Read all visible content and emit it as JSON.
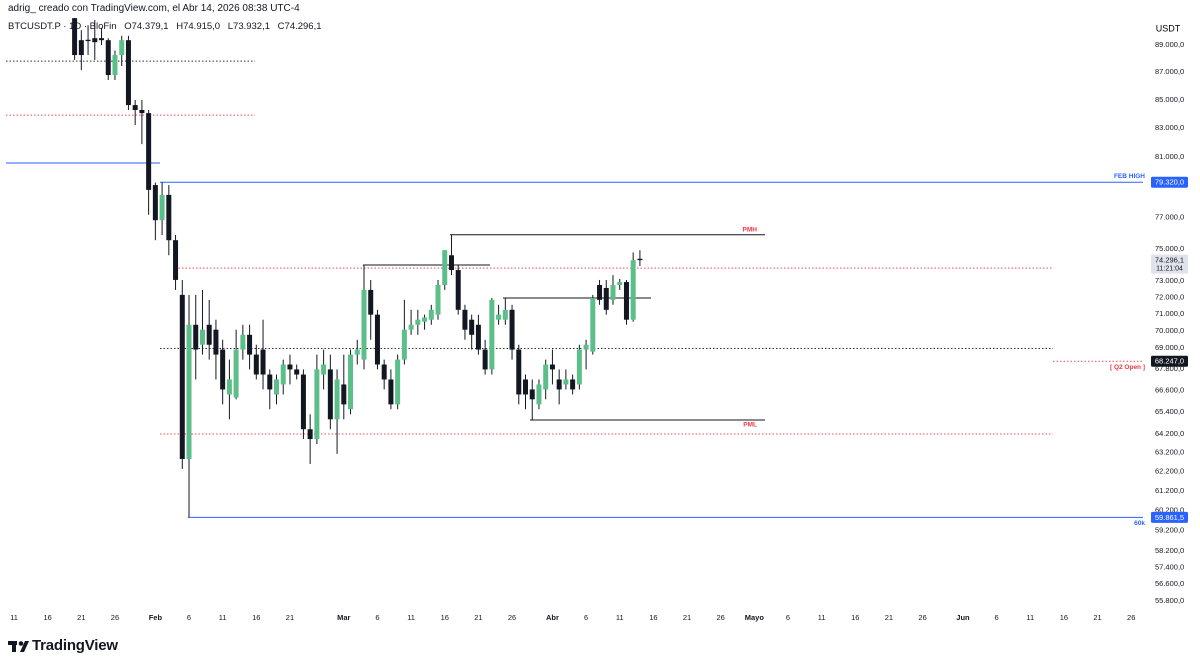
{
  "attribution": "adrig_ creado con TradingView.com, el Abr 14, 2026 08:38 UTC-4",
  "brand": "TradingView",
  "chart_data": {
    "type": "candlestick",
    "symbol": "BTCUSDT.P · 1D · BloFin",
    "ohlc_prefixes": [
      "O",
      "H",
      "L",
      "C"
    ],
    "ohlc_labels": [
      "74.379,1",
      "74.915,0",
      "73.932,1",
      "74.296,1"
    ],
    "currency": "USDT",
    "last_price": {
      "label": "74.296,1",
      "countdown": "11:21:04"
    },
    "up_color": "#5cbf8a",
    "down_color": "#131722",
    "wick_color": "#131722",
    "log_scale": true,
    "grid": false,
    "ylim": [
      55380,
      91050
    ],
    "yticks": [
      {
        "value": 89000,
        "label": "89.000,0"
      },
      {
        "value": 87000,
        "label": "87.000,0"
      },
      {
        "value": 85000,
        "label": "85.000,0"
      },
      {
        "value": 83000,
        "label": "83.000,0"
      },
      {
        "value": 81000,
        "label": "81.000,0"
      },
      {
        "value": 77000,
        "label": "77.000,0"
      },
      {
        "value": 75000,
        "label": "75.000,0"
      },
      {
        "value": 73000,
        "label": "73.000,0"
      },
      {
        "value": 72000,
        "label": "72.000,0"
      },
      {
        "value": 71000,
        "label": "71.000,0"
      },
      {
        "value": 70000,
        "label": "70.000,0"
      },
      {
        "value": 69000,
        "label": "69.000,0"
      },
      {
        "value": 67800,
        "label": "67.800,0"
      },
      {
        "value": 66600,
        "label": "66.600,0"
      },
      {
        "value": 65400,
        "label": "65.400,0"
      },
      {
        "value": 64200,
        "label": "64.200,0"
      },
      {
        "value": 63200,
        "label": "63.200,0"
      },
      {
        "value": 62200,
        "label": "62.200,0"
      },
      {
        "value": 61200,
        "label": "61.200,0"
      },
      {
        "value": 60200,
        "label": "60.200,0"
      },
      {
        "value": 59200,
        "label": "59.200,0"
      },
      {
        "value": 58200,
        "label": "58.200,0"
      },
      {
        "value": 57400,
        "label": "57.400,0"
      },
      {
        "value": 56600,
        "label": "56.600,0"
      },
      {
        "value": 55800,
        "label": "55.800,0"
      }
    ],
    "categories": [
      null,
      "11",
      null,
      null,
      null,
      null,
      "16",
      null,
      null,
      null,
      null,
      "21",
      null,
      null,
      null,
      null,
      "26",
      null,
      null,
      null,
      null,
      null,
      "Feb",
      null,
      null,
      null,
      null,
      "6",
      null,
      null,
      null,
      null,
      "11",
      null,
      null,
      null,
      null,
      "16",
      null,
      null,
      null,
      null,
      "21",
      null,
      null,
      null,
      null,
      null,
      null,
      null,
      "Mar",
      null,
      null,
      null,
      null,
      "6",
      null,
      null,
      null,
      null,
      "11",
      null,
      null,
      null,
      null,
      "16",
      null,
      null,
      null,
      null,
      "21",
      null,
      null,
      null,
      null,
      "26",
      null,
      null,
      null,
      null,
      null,
      "Abr",
      null,
      null,
      null,
      null,
      "6",
      null,
      null,
      null,
      null,
      "11",
      null,
      null,
      null,
      null,
      "16",
      null,
      null,
      null,
      null,
      "21",
      null,
      null,
      null,
      null,
      "26",
      null,
      null,
      null,
      null,
      "Mayo",
      null,
      null,
      null,
      null,
      "6",
      null,
      null,
      null,
      null,
      "11",
      null,
      null,
      null,
      null,
      "16",
      null,
      null,
      null,
      null,
      "21",
      null,
      null,
      null,
      null,
      "26",
      null,
      null,
      null,
      null,
      null,
      "Jun",
      null,
      null,
      null,
      null,
      "6",
      null,
      null,
      null,
      null,
      "11",
      null,
      null,
      null,
      null,
      "16",
      null,
      null,
      null,
      null,
      "21",
      null,
      null,
      null,
      null,
      "26",
      null,
      null,
      null,
      null
    ],
    "open": [
      null,
      null,
      null,
      null,
      null,
      null,
      null,
      null,
      null,
      null,
      91040,
      89370,
      89400,
      89520,
      89520,
      89370,
      86790,
      88260,
      89370,
      84630,
      84280,
      84060,
      79130,
      76830,
      78480,
      75550,
      72160,
      62870,
      70370,
      69200,
      70370,
      70080,
      68920,
      66370,
      66200,
      68920,
      69780,
      68630,
      68920,
      67490,
      66370,
      66930,
      68060,
      67780,
      67490,
      64460,
      63930,
      67490,
      67780,
      65000,
      66930,
      65550,
      68630,
      68340,
      72460,
      70970,
      68060,
      67210,
      65820,
      68340,
      70080,
      70370,
      70550,
      70670,
      70970,
      72760,
      74600,
      73680,
      71260,
      70670,
      70370,
      68920,
      67780,
      70670,
      70670,
      71260,
      68920,
      67210,
      66650,
      65820,
      66650,
      68060,
      67210,
      66930,
      67210,
      66930,
      68920,
      68800,
      72760,
      72580,
      71860,
      72760,
      72940,
      70670,
      74379.1,
      null,
      null,
      null,
      null,
      null,
      null,
      null,
      null,
      null,
      null,
      null,
      null,
      null,
      null,
      null,
      null,
      null,
      null,
      null,
      null,
      null,
      null,
      null,
      null,
      null,
      null,
      null,
      null,
      null,
      null,
      null,
      null,
      null,
      null,
      null,
      null,
      null,
      null,
      null,
      null,
      null,
      null,
      null,
      null,
      null,
      null,
      null,
      null,
      null,
      null,
      null,
      null,
      null,
      null,
      null,
      null,
      null,
      null,
      null,
      null,
      null,
      null,
      null,
      null,
      null,
      null,
      null,
      null,
      null,
      null,
      null,
      null,
      null,
      null,
      null,
      null,
      null
    ],
    "high": [
      null,
      null,
      null,
      null,
      null,
      null,
      null,
      null,
      null,
      null,
      91300,
      90130,
      90500,
      90900,
      90300,
      89520,
      88600,
      89700,
      89700,
      84990,
      84990,
      84280,
      79300,
      79320,
      79130,
      75880,
      73070,
      72160,
      72160,
      72460,
      71860,
      70670,
      69490,
      68340,
      70080,
      70370,
      70370,
      69200,
      70670,
      67780,
      67490,
      68340,
      68630,
      68060,
      67780,
      65270,
      68630,
      68920,
      68630,
      67780,
      68630,
      68920,
      69490,
      73990,
      73070,
      71260,
      68340,
      67780,
      68630,
      71860,
      71260,
      71260,
      70970,
      71560,
      73070,
      74920,
      75900,
      73990,
      71560,
      70970,
      70970,
      69490,
      71970,
      71560,
      71970,
      71560,
      69200,
      67490,
      67210,
      67210,
      68340,
      68920,
      67780,
      67780,
      67490,
      69200,
      69490,
      72160,
      73070,
      73070,
      73370,
      73130,
      73070,
      74780,
      74915,
      null,
      null,
      null,
      null,
      null,
      null,
      null,
      null,
      null,
      null,
      null,
      null,
      null,
      null,
      null,
      null,
      null,
      null,
      null,
      null,
      null,
      null,
      null,
      null,
      null,
      null,
      null,
      null,
      null,
      null,
      null,
      null,
      null,
      null,
      null,
      null,
      null,
      null,
      null,
      null,
      null,
      null,
      null,
      null,
      null,
      null,
      null,
      null,
      null,
      null,
      null,
      null,
      null,
      null,
      null,
      null,
      null,
      null,
      null,
      null,
      null,
      null,
      null,
      null,
      null,
      null,
      null,
      null,
      null,
      null,
      null,
      null,
      null,
      null,
      null,
      null,
      null
    ],
    "low": [
      null,
      null,
      null,
      null,
      null,
      null,
      null,
      null,
      null,
      null,
      87900,
      87150,
      88260,
      87900,
      89000,
      86430,
      86430,
      87450,
      84280,
      83220,
      81900,
      77180,
      75550,
      75880,
      74600,
      72460,
      62350,
      59861.5,
      67210,
      68630,
      68340,
      67210,
      65820,
      65000,
      66100,
      68340,
      67780,
      67210,
      66650,
      65550,
      65820,
      66370,
      66930,
      67210,
      63930,
      62610,
      63660,
      66650,
      64460,
      63140,
      65000,
      65270,
      68060,
      67780,
      69490,
      67780,
      66650,
      65550,
      65550,
      68060,
      69780,
      69780,
      70080,
      70370,
      70670,
      72460,
      73370,
      70970,
      69490,
      68920,
      68630,
      67490,
      67490,
      70370,
      70370,
      68340,
      65820,
      65550,
      64960,
      65550,
      66100,
      66930,
      65820,
      66650,
      66370,
      66650,
      67780,
      68630,
      71560,
      70970,
      71560,
      72460,
      70370,
      70550,
      73932.1,
      null,
      null,
      null,
      null,
      null,
      null,
      null,
      null,
      null,
      null,
      null,
      null,
      null,
      null,
      null,
      null,
      null,
      null,
      null,
      null,
      null,
      null,
      null,
      null,
      null,
      null,
      null,
      null,
      null,
      null,
      null,
      null,
      null,
      null,
      null,
      null,
      null,
      null,
      null,
      null,
      null,
      null,
      null,
      null,
      null,
      null,
      null,
      null,
      null,
      null,
      null,
      null,
      null,
      null,
      null,
      null,
      null,
      null,
      null,
      null,
      null,
      null,
      null,
      null,
      null,
      null,
      null,
      null,
      null,
      null,
      null,
      null,
      null,
      null,
      null,
      null,
      null
    ],
    "close": [
      null,
      null,
      null,
      null,
      null,
      null,
      null,
      null,
      null,
      null,
      88260,
      88260,
      89300,
      89220,
      89370,
      86790,
      88260,
      89370,
      84630,
      84280,
      84060,
      78810,
      76830,
      78480,
      75550,
      73070,
      62870,
      70370,
      68920,
      70080,
      69200,
      68630,
      66650,
      67210,
      68920,
      69780,
      68630,
      67490,
      67490,
      66650,
      67210,
      68060,
      67780,
      67490,
      64460,
      63930,
      67780,
      68060,
      65000,
      67210,
      65820,
      68630,
      68920,
      72460,
      70970,
      68060,
      67210,
      65820,
      68340,
      70080,
      70370,
      70670,
      70800,
      71260,
      72760,
      74920,
      73680,
      71260,
      70080,
      69780,
      68920,
      67780,
      71860,
      70970,
      71260,
      68920,
      66370,
      66370,
      66100,
      66930,
      68060,
      67780,
      66650,
      67210,
      66650,
      68920,
      69200,
      71970,
      71860,
      71260,
      72760,
      72940,
      70670,
      74290,
      74296.1,
      null,
      null,
      null,
      null,
      null,
      null,
      null,
      null,
      null,
      null,
      null,
      null,
      null,
      null,
      null,
      null,
      null,
      null,
      null,
      null,
      null,
      null,
      null,
      null,
      null,
      null,
      null,
      null,
      null,
      null,
      null,
      null,
      null,
      null,
      null,
      null,
      null,
      null,
      null,
      null,
      null,
      null,
      null,
      null,
      null,
      null,
      null,
      null,
      null,
      null,
      null,
      null,
      null,
      null,
      null,
      null,
      null,
      null,
      null,
      null,
      null,
      null,
      null,
      null,
      null,
      null,
      null,
      null,
      null,
      null,
      null,
      null,
      null,
      null,
      null,
      null,
      null
    ],
    "levels": [
      {
        "value": 87810,
        "color": "#131722",
        "style": "dotted"
      },
      {
        "value": 83920,
        "color": "#f23645",
        "style": "dotted"
      },
      {
        "value": 80610,
        "color": "#2962ff",
        "style": "solid"
      },
      {
        "value": 79320,
        "color": "#2962ff",
        "style": "solid",
        "label": "FEB HIGH",
        "label_color": "#2962ff",
        "price_label": "79.320,0",
        "price_label_color": "#2962ff"
      },
      {
        "value": 75900,
        "color": "#131722",
        "style": "solid",
        "label": "PMH",
        "label_color": "#f23645"
      },
      {
        "value": 73990,
        "color": "#131722",
        "style": "solid"
      },
      {
        "value": 73800,
        "color": "#f23645",
        "style": "dotted"
      },
      {
        "value": 71970,
        "color": "#131722",
        "style": "solid"
      },
      {
        "value": 68980,
        "color": "#131722",
        "style": "dotted"
      },
      {
        "value": 68247,
        "color": "#f23645",
        "style": "dotted",
        "label": "[ Q2 Open ]",
        "label_color": "#f23645",
        "price_label": "68.247,0",
        "price_label_color": "#131722"
      },
      {
        "value": 64960,
        "color": "#131722",
        "style": "solid",
        "label": "PML",
        "label_color": "#f23645"
      },
      {
        "value": 64200,
        "color": "#f23645",
        "style": "dotted"
      },
      {
        "value": 59861.5,
        "color": "#2962ff",
        "style": "solid",
        "label": "60k",
        "label_color": "#2962ff",
        "price_label": "59.861,5",
        "price_label_color": "#2962ff"
      }
    ]
  }
}
